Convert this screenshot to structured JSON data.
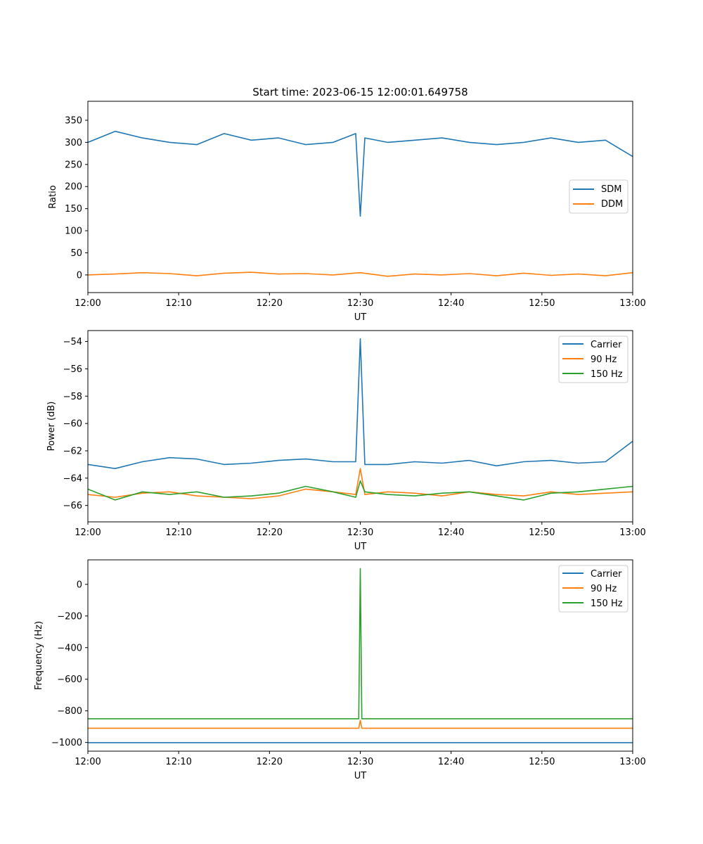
{
  "figure": {
    "title": "Start time: 2023-06-15 12:00:01.649758"
  },
  "colors": {
    "blue": "#1f77b4",
    "orange": "#ff7f0e",
    "green": "#2ca02c"
  },
  "chart_data": [
    {
      "type": "line",
      "title": "Start time: 2023-06-15 12:00:01.649758",
      "xlabel": "UT",
      "ylabel": "Ratio",
      "xlim": [
        "12:00",
        "13:00"
      ],
      "ylim": [
        -40,
        393
      ],
      "xticks": [
        "12:00",
        "12:10",
        "12:20",
        "12:30",
        "12:40",
        "12:50",
        "13:00"
      ],
      "yticks": [
        0,
        50,
        100,
        150,
        200,
        250,
        300,
        350
      ],
      "legend_position": "center-right",
      "grid": false,
      "series": [
        {
          "name": "SDM",
          "color": "#1f77b4",
          "x": [
            "12:00",
            "12:03",
            "12:06",
            "12:09",
            "12:12",
            "12:15",
            "12:18",
            "12:21",
            "12:24",
            "12:27",
            "12:29:30",
            "12:30",
            "12:30:30",
            "12:33",
            "12:36",
            "12:39",
            "12:42",
            "12:45",
            "12:48",
            "12:51",
            "12:54",
            "12:57",
            "13:00"
          ],
          "values": [
            300,
            325,
            310,
            300,
            295,
            320,
            305,
            310,
            295,
            300,
            320,
            133,
            310,
            300,
            305,
            310,
            300,
            295,
            300,
            310,
            300,
            305,
            268
          ]
        },
        {
          "name": "DDM",
          "color": "#ff7f0e",
          "x": [
            "12:00",
            "12:03",
            "12:06",
            "12:09",
            "12:12",
            "12:15",
            "12:18",
            "12:21",
            "12:24",
            "12:27",
            "12:30",
            "12:33",
            "12:36",
            "12:39",
            "12:42",
            "12:45",
            "12:48",
            "12:51",
            "12:54",
            "12:57",
            "13:00"
          ],
          "values": [
            0,
            2,
            5,
            3,
            -2,
            4,
            6,
            2,
            3,
            0,
            5,
            -3,
            2,
            0,
            3,
            -2,
            4,
            -1,
            2,
            -2,
            5
          ]
        }
      ]
    },
    {
      "type": "line",
      "title": "",
      "xlabel": "UT",
      "ylabel": "Power (dB)",
      "xlim": [
        "12:00",
        "13:00"
      ],
      "ylim": [
        -67.2,
        -53.2
      ],
      "xticks": [
        "12:00",
        "12:10",
        "12:20",
        "12:30",
        "12:40",
        "12:50",
        "13:00"
      ],
      "yticks": [
        -66,
        -64,
        -62,
        -60,
        -58,
        -56,
        -54
      ],
      "legend_position": "top-right",
      "grid": false,
      "series": [
        {
          "name": "Carrier",
          "color": "#1f77b4",
          "x": [
            "12:00",
            "12:03",
            "12:06",
            "12:09",
            "12:12",
            "12:15",
            "12:18",
            "12:21",
            "12:24",
            "12:27",
            "12:29:30",
            "12:30",
            "12:30:30",
            "12:33",
            "12:36",
            "12:39",
            "12:42",
            "12:45",
            "12:48",
            "12:51",
            "12:54",
            "12:57",
            "13:00"
          ],
          "values": [
            -63.0,
            -63.3,
            -62.8,
            -62.5,
            -62.6,
            -63.0,
            -62.9,
            -62.7,
            -62.6,
            -62.8,
            -62.8,
            -53.8,
            -63.0,
            -63.0,
            -62.8,
            -62.9,
            -62.7,
            -63.1,
            -62.8,
            -62.7,
            -62.9,
            -62.8,
            -61.3
          ]
        },
        {
          "name": "90 Hz",
          "color": "#ff7f0e",
          "x": [
            "12:00",
            "12:03",
            "12:06",
            "12:09",
            "12:12",
            "12:15",
            "12:18",
            "12:21",
            "12:24",
            "12:27",
            "12:29:30",
            "12:30",
            "12:30:30",
            "12:33",
            "12:36",
            "12:39",
            "12:42",
            "12:45",
            "12:48",
            "12:51",
            "12:54",
            "12:57",
            "13:00"
          ],
          "values": [
            -65.2,
            -65.4,
            -65.1,
            -65.0,
            -65.3,
            -65.4,
            -65.5,
            -65.3,
            -64.8,
            -65.0,
            -65.2,
            -63.3,
            -65.2,
            -65.0,
            -65.1,
            -65.3,
            -65.0,
            -65.2,
            -65.3,
            -65.0,
            -65.2,
            -65.1,
            -65.0
          ]
        },
        {
          "name": "150 Hz",
          "color": "#2ca02c",
          "x": [
            "12:00",
            "12:03",
            "12:06",
            "12:09",
            "12:12",
            "12:15",
            "12:18",
            "12:21",
            "12:24",
            "12:27",
            "12:29:30",
            "12:30",
            "12:30:30",
            "12:33",
            "12:36",
            "12:39",
            "12:42",
            "12:45",
            "12:48",
            "12:51",
            "12:54",
            "12:57",
            "13:00"
          ],
          "values": [
            -64.8,
            -65.6,
            -65.0,
            -65.2,
            -65.0,
            -65.4,
            -65.3,
            -65.1,
            -64.6,
            -65.0,
            -65.4,
            -64.2,
            -65.0,
            -65.2,
            -65.3,
            -65.1,
            -65.0,
            -65.3,
            -65.6,
            -65.1,
            -65.0,
            -64.8,
            -64.6
          ]
        }
      ]
    },
    {
      "type": "line",
      "title": "",
      "xlabel": "UT",
      "ylabel": "Frequency (Hz)",
      "xlim": [
        "12:00",
        "13:00"
      ],
      "ylim": [
        -1055,
        155
      ],
      "xticks": [
        "12:00",
        "12:10",
        "12:20",
        "12:30",
        "12:40",
        "12:50",
        "13:00"
      ],
      "yticks": [
        -1000,
        -800,
        -600,
        -400,
        -200,
        0
      ],
      "legend_position": "top-right",
      "grid": false,
      "series": [
        {
          "name": "Carrier",
          "color": "#1f77b4",
          "x": [
            "12:00",
            "12:29:50",
            "12:30",
            "12:30:10",
            "13:00"
          ],
          "values": [
            -1001,
            -1001,
            -1001,
            -1001,
            -1001
          ]
        },
        {
          "name": "90 Hz",
          "color": "#ff7f0e",
          "x": [
            "12:00",
            "12:29:50",
            "12:30",
            "12:30:10",
            "13:00"
          ],
          "values": [
            -910,
            -910,
            -860,
            -910,
            -910
          ]
        },
        {
          "name": "150 Hz",
          "color": "#2ca02c",
          "x": [
            "12:00",
            "12:29:50",
            "12:30",
            "12:30:10",
            "13:00"
          ],
          "values": [
            -850,
            -850,
            100,
            -850,
            -850
          ]
        }
      ]
    }
  ]
}
